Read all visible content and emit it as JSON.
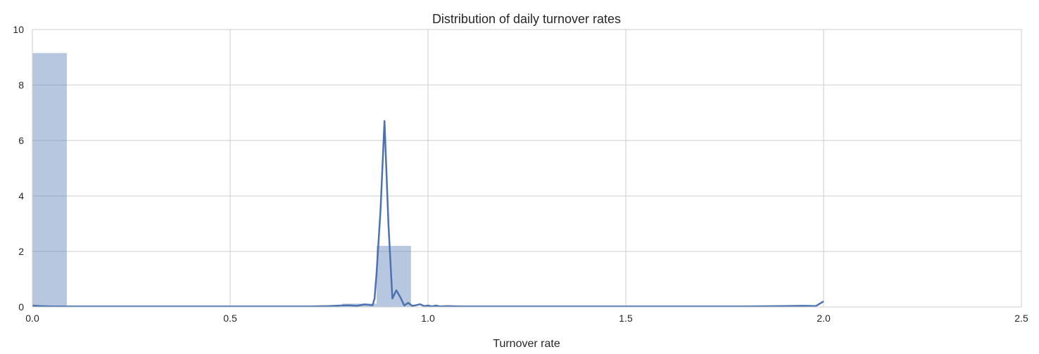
{
  "chart_data": {
    "type": "bar",
    "title": "Distribution of daily turnover rates",
    "xlabel": "Turnover rate",
    "ylabel": "",
    "xlim": [
      0.0,
      2.5
    ],
    "ylim": [
      0,
      10
    ],
    "x_ticks": [
      "0.0",
      "0.5",
      "1.0",
      "1.5",
      "2.0",
      "2.5"
    ],
    "x_tick_values": [
      0.0,
      0.5,
      1.0,
      1.5,
      2.0,
      2.5
    ],
    "y_ticks": [
      "0",
      "2",
      "4",
      "6",
      "8",
      "10"
    ],
    "y_tick_values": [
      0,
      2,
      4,
      6,
      8,
      10
    ],
    "grid": true,
    "histogram": {
      "bins": [
        {
          "x0": 0.0,
          "x1": 0.087,
          "value": 9.15
        },
        {
          "x0": 0.783,
          "x1": 0.87,
          "value": 0.12
        },
        {
          "x0": 0.87,
          "x1": 0.957,
          "value": 2.2
        }
      ],
      "color": "#4c72b0",
      "opacity": 0.4
    },
    "kde": {
      "color": "#4c72b0",
      "x": [
        0.0,
        0.02,
        0.05,
        0.1,
        0.2,
        0.3,
        0.4,
        0.5,
        0.6,
        0.7,
        0.75,
        0.78,
        0.8,
        0.82,
        0.84,
        0.86,
        0.865,
        0.87,
        0.88,
        0.89,
        0.9,
        0.91,
        0.92,
        0.93,
        0.94,
        0.95,
        0.96,
        0.97,
        0.98,
        0.99,
        1.0,
        1.01,
        1.02,
        1.03,
        1.05,
        1.08,
        1.1,
        1.2,
        1.3,
        1.4,
        1.5,
        1.6,
        1.7,
        1.8,
        1.9,
        1.95,
        1.98,
        2.0
      ],
      "y": [
        0.05,
        0.03,
        0.02,
        0.02,
        0.02,
        0.02,
        0.02,
        0.02,
        0.02,
        0.02,
        0.03,
        0.05,
        0.06,
        0.04,
        0.09,
        0.06,
        0.3,
        1.2,
        3.5,
        6.7,
        3.0,
        0.3,
        0.6,
        0.35,
        0.05,
        0.15,
        0.04,
        0.06,
        0.1,
        0.03,
        0.05,
        0.02,
        0.05,
        0.02,
        0.03,
        0.02,
        0.02,
        0.02,
        0.02,
        0.02,
        0.02,
        0.02,
        0.02,
        0.02,
        0.03,
        0.04,
        0.03,
        0.2
      ]
    }
  }
}
